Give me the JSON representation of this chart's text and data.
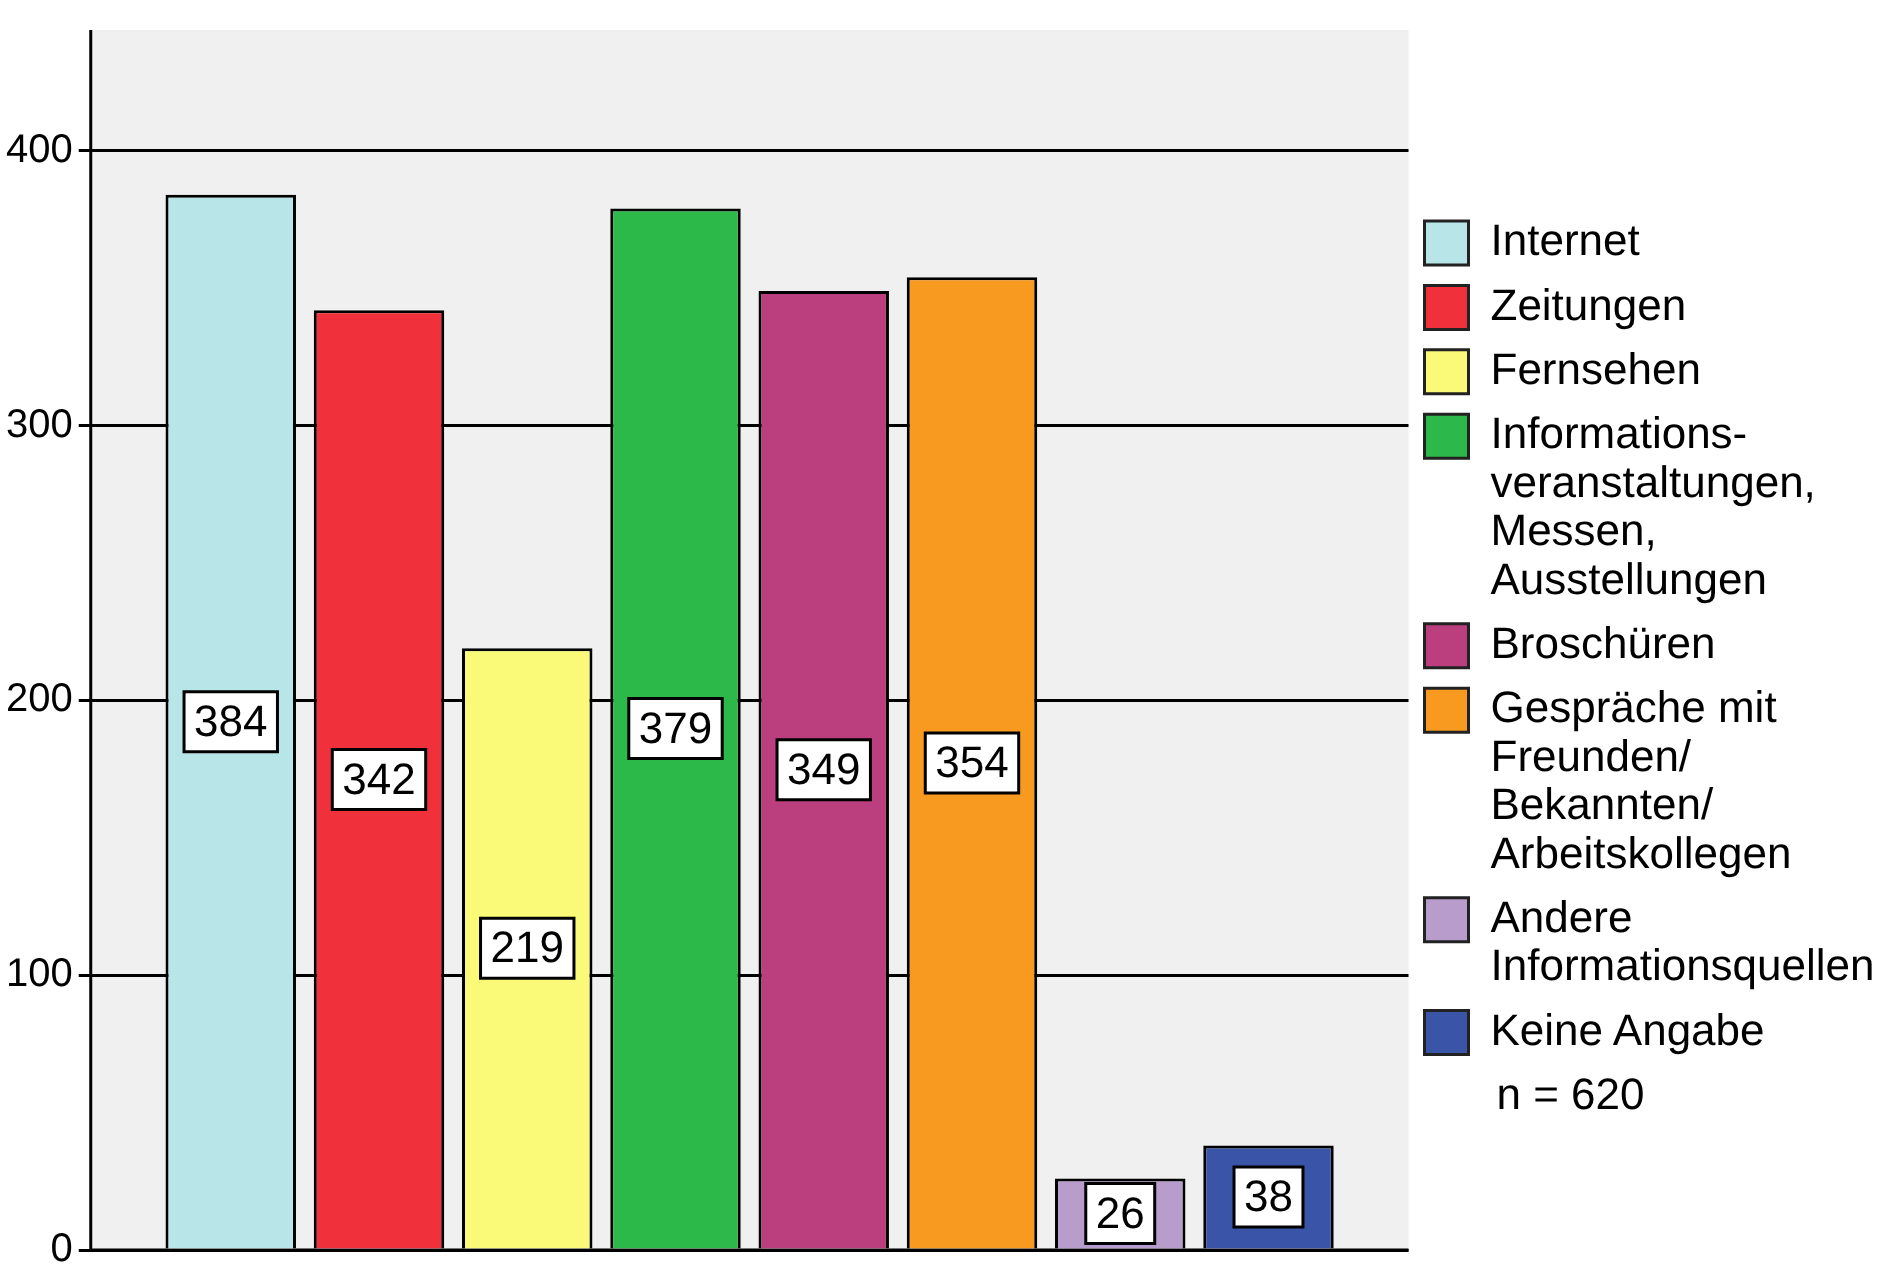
{
  "chart_data": {
    "type": "bar",
    "categories": [
      null
    ],
    "series": [
      {
        "name": "Internet",
        "color": "#b8e6e8",
        "values": [
          384
        ]
      },
      {
        "name": "Zeitungen",
        "color": "#f0303a",
        "values": [
          342
        ]
      },
      {
        "name": "Fernsehen",
        "color": "#fafa78",
        "values": [
          219
        ]
      },
      {
        "name": "Informations-veranstaltungen, Messen, Ausstellungen",
        "color": "#2db84a",
        "values": [
          379
        ]
      },
      {
        "name": "Broschüren",
        "color": "#bb3f7e",
        "values": [
          349
        ]
      },
      {
        "name": "Gespräche mit Freunden/ Bekannten/ Arbeitskollegen",
        "color": "#f89a20",
        "values": [
          354
        ]
      },
      {
        "name": "Andere Informationsquellen",
        "color": "#b89ccc",
        "values": [
          26
        ]
      },
      {
        "name": "Keine Angabe",
        "color": "#3a55a8",
        "values": [
          38
        ]
      }
    ],
    "ylim": [
      0,
      444
    ],
    "yticks": [
      0,
      100,
      200,
      300,
      400
    ],
    "grid": "y",
    "legend": "right",
    "tick_labels": "y",
    "data_labels": true,
    "annotations": [
      "n = 620"
    ]
  }
}
